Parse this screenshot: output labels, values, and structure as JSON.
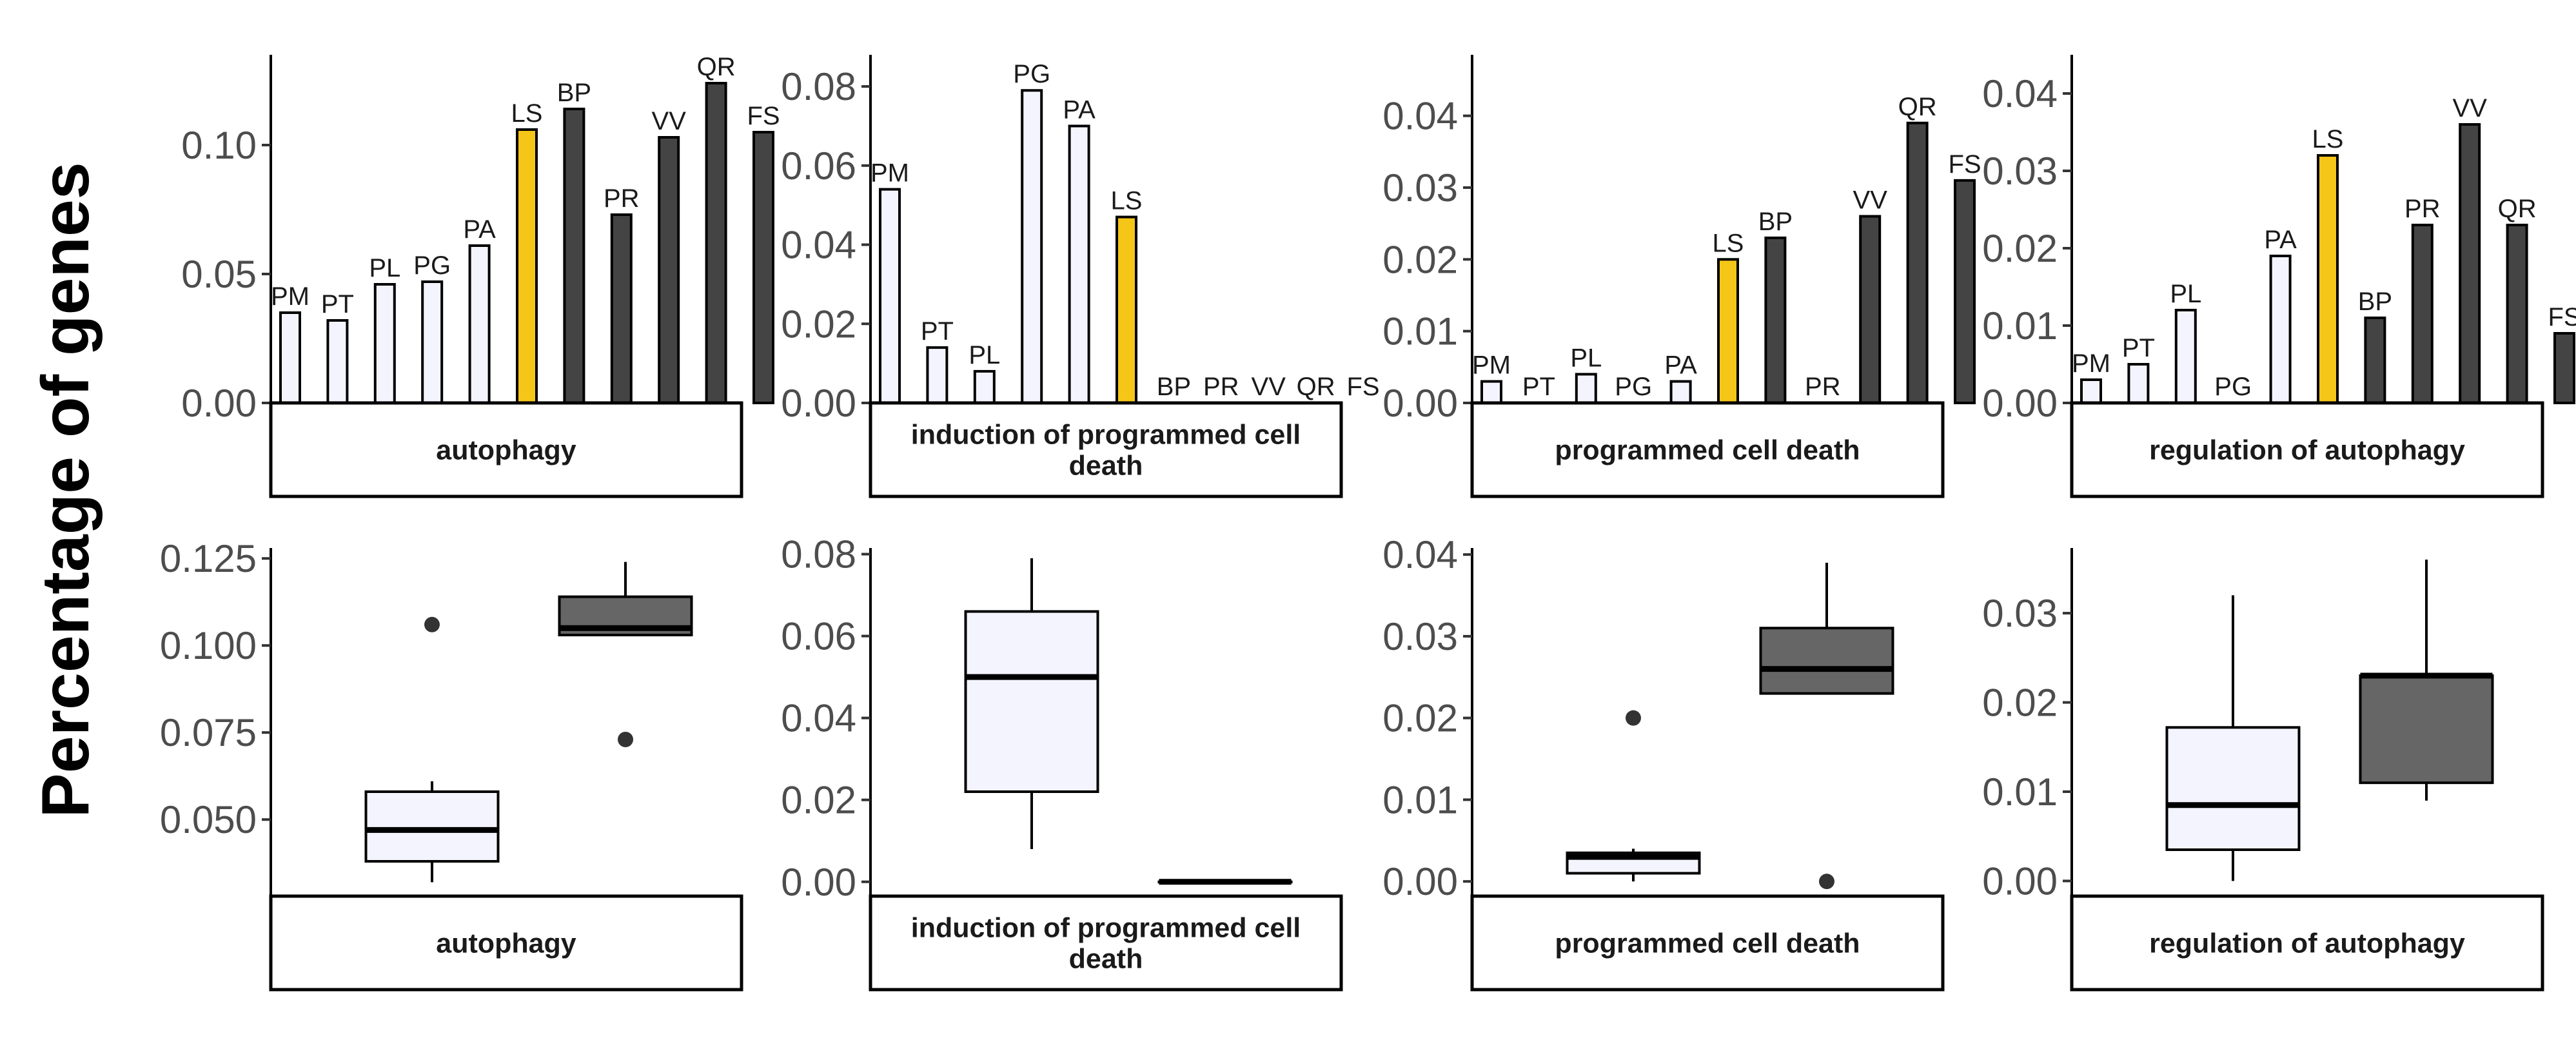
{
  "y_axis_label": "Percentage of genes",
  "colors": {
    "plant": "#f4f4ff",
    "ls": "#f5c518",
    "other": "#444444",
    "box_other": "#666666",
    "outline": "#000000"
  },
  "chart_data": [
    {
      "type": "bar",
      "facet": "autophagy",
      "categories": [
        "PM",
        "PT",
        "PL",
        "PG",
        "PA",
        "LS",
        "BP",
        "PR",
        "VV",
        "QR",
        "FS"
      ],
      "groups": [
        "plant",
        "plant",
        "plant",
        "plant",
        "plant",
        "ls",
        "other",
        "other",
        "other",
        "other",
        "other"
      ],
      "values": [
        0.035,
        0.032,
        0.046,
        0.047,
        0.061,
        0.106,
        0.114,
        0.073,
        0.103,
        0.124,
        0.105
      ],
      "yticks": [
        0.0,
        0.05,
        0.1
      ],
      "ytick_labels": [
        "0.00",
        "0.05",
        "0.10"
      ],
      "ylim": [
        0,
        0.135
      ]
    },
    {
      "type": "bar",
      "facet": "induction of programmed cell death",
      "facet_lines": [
        "induction of programmed cell",
        "death"
      ],
      "categories": [
        "PM",
        "PT",
        "PL",
        "PG",
        "PA",
        "LS",
        "BP",
        "PR",
        "VV",
        "QR",
        "FS"
      ],
      "groups": [
        "plant",
        "plant",
        "plant",
        "plant",
        "plant",
        "ls",
        "other",
        "other",
        "other",
        "other",
        "other"
      ],
      "values": [
        0.054,
        0.014,
        0.008,
        0.079,
        0.07,
        0.047,
        0,
        0,
        0,
        0,
        0
      ],
      "yticks": [
        0.0,
        0.02,
        0.04,
        0.06,
        0.08
      ],
      "ytick_labels": [
        "0.00",
        "0.02",
        "0.04",
        "0.06",
        "0.08"
      ],
      "ylim": [
        0,
        0.088
      ]
    },
    {
      "type": "bar",
      "facet": "programmed cell death",
      "categories": [
        "PM",
        "PT",
        "PL",
        "PG",
        "PA",
        "LS",
        "BP",
        "PR",
        "VV",
        "QR",
        "FS"
      ],
      "groups": [
        "plant",
        "plant",
        "plant",
        "plant",
        "plant",
        "ls",
        "other",
        "other",
        "other",
        "other",
        "other"
      ],
      "values": [
        0.003,
        0,
        0.004,
        0,
        0.003,
        0.02,
        0.023,
        0,
        0.026,
        0.039,
        0.031
      ],
      "yticks": [
        0.0,
        0.01,
        0.02,
        0.03,
        0.04
      ],
      "ytick_labels": [
        "0.00",
        "0.01",
        "0.02",
        "0.03",
        "0.04"
      ],
      "ylim": [
        0,
        0.0485
      ]
    },
    {
      "type": "bar",
      "facet": "regulation of autophagy",
      "categories": [
        "PM",
        "PT",
        "PL",
        "PG",
        "PA",
        "LS",
        "BP",
        "PR",
        "VV",
        "QR",
        "FS"
      ],
      "groups": [
        "plant",
        "plant",
        "plant",
        "plant",
        "plant",
        "ls",
        "other",
        "other",
        "other",
        "other",
        "other"
      ],
      "values": [
        0.003,
        0.005,
        0.012,
        0,
        0.019,
        0.032,
        0.011,
        0.023,
        0.036,
        0.023,
        0.009
      ],
      "yticks": [
        0.0,
        0.01,
        0.02,
        0.03,
        0.04
      ],
      "ytick_labels": [
        "0.00",
        "0.01",
        "0.02",
        "0.03",
        "0.04"
      ],
      "ylim": [
        0,
        0.045
      ]
    },
    {
      "type": "box",
      "facet": "autophagy",
      "boxes": [
        {
          "group": "plant",
          "whisker_low": 0.032,
          "q1": 0.038,
          "median": 0.047,
          "q3": 0.058,
          "whisker_high": 0.061,
          "outliers": [
            0.106
          ]
        },
        {
          "group": "other",
          "whisker_low": 0.103,
          "q1": 0.103,
          "median": 0.105,
          "q3": 0.114,
          "whisker_high": 0.124,
          "outliers": [
            0.073
          ]
        }
      ],
      "yticks": [
        0.05,
        0.075,
        0.1,
        0.125
      ],
      "ytick_labels": [
        "0.050",
        "0.075",
        "0.100",
        "0.125"
      ],
      "ylim": [
        0.028,
        0.128
      ]
    },
    {
      "type": "box",
      "facet": "induction of programmed cell death",
      "facet_lines": [
        "induction of programmed cell",
        "death"
      ],
      "boxes": [
        {
          "group": "plant",
          "whisker_low": 0.008,
          "q1": 0.022,
          "median": 0.05,
          "q3": 0.066,
          "whisker_high": 0.079,
          "outliers": []
        },
        {
          "group": "other",
          "whisker_low": 0,
          "q1": 0,
          "median": 0,
          "q3": 0,
          "whisker_high": 0,
          "outliers": []
        }
      ],
      "yticks": [
        0.0,
        0.02,
        0.04,
        0.06,
        0.08
      ],
      "ytick_labels": [
        "0.00",
        "0.02",
        "0.04",
        "0.06",
        "0.08"
      ],
      "ylim": [
        -0.0035,
        0.0815
      ]
    },
    {
      "type": "box",
      "facet": "programmed cell death",
      "boxes": [
        {
          "group": "plant",
          "whisker_low": 0.0,
          "q1": 0.001,
          "median": 0.003,
          "q3": 0.0035,
          "whisker_high": 0.004,
          "outliers": [
            0.02
          ]
        },
        {
          "group": "other",
          "whisker_low": 0.023,
          "q1": 0.023,
          "median": 0.026,
          "q3": 0.031,
          "whisker_high": 0.039,
          "outliers": [
            0.0
          ]
        }
      ],
      "yticks": [
        0.0,
        0.01,
        0.02,
        0.03,
        0.04
      ],
      "ytick_labels": [
        "0.00",
        "0.01",
        "0.02",
        "0.03",
        "0.04"
      ],
      "ylim": [
        -0.0018,
        0.0408
      ]
    },
    {
      "type": "box",
      "facet": "regulation of autophagy",
      "boxes": [
        {
          "group": "plant",
          "whisker_low": 0.0,
          "q1": 0.0035,
          "median": 0.0085,
          "q3": 0.0172,
          "whisker_high": 0.032,
          "outliers": []
        },
        {
          "group": "other",
          "whisker_low": 0.009,
          "q1": 0.011,
          "median": 0.023,
          "q3": 0.023,
          "whisker_high": 0.036,
          "outliers": []
        }
      ],
      "yticks": [
        0.0,
        0.01,
        0.02,
        0.03
      ],
      "ytick_labels": [
        "0.00",
        "0.01",
        "0.02",
        "0.03"
      ],
      "ylim": [
        -0.0017,
        0.0373
      ]
    }
  ]
}
